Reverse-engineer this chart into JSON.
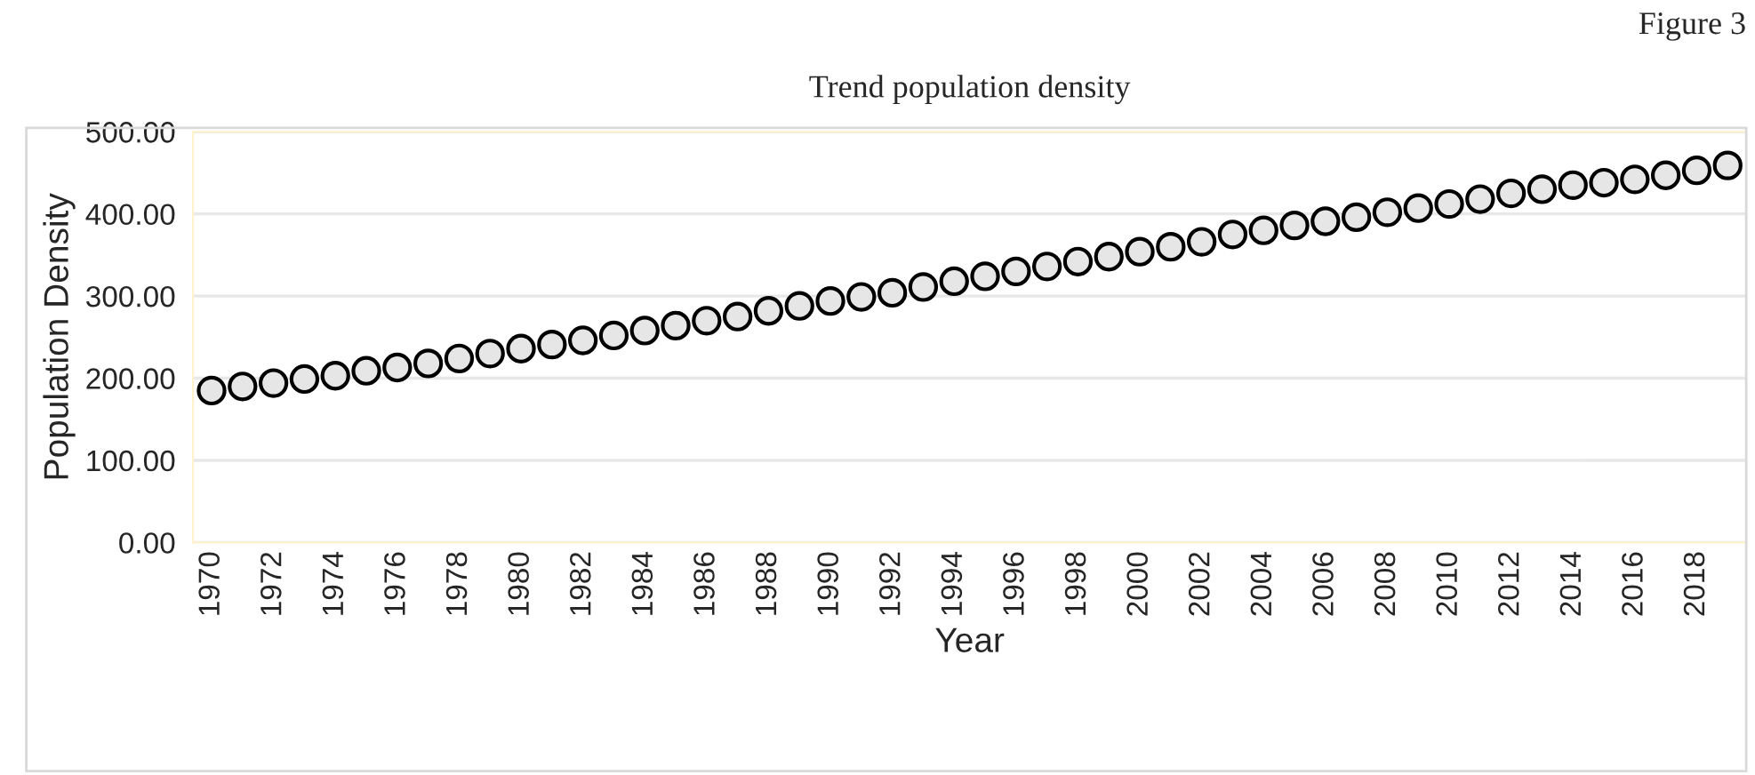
{
  "chart_data": {
    "type": "scatter",
    "title": "Trend population density",
    "xlabel": "Year",
    "ylabel": "Population Density",
    "annotations": [
      "Figure 3"
    ],
    "categories": [
      "1970",
      null,
      "1972",
      null,
      "1974",
      null,
      "1976",
      null,
      "1978",
      null,
      "1980",
      null,
      "1982",
      null,
      "1984",
      null,
      "1986",
      null,
      "1988",
      null,
      "1990",
      null,
      "1992",
      null,
      "1994",
      null,
      "1996",
      null,
      "1998",
      null,
      "2000",
      null,
      "2002",
      null,
      "2004",
      null,
      "2006",
      null,
      "2008",
      null,
      "2010",
      null,
      "2012",
      null,
      "2014",
      null,
      "2016",
      null,
      "2018",
      null
    ],
    "series": [
      {
        "color": "#e6e6e6",
        "values": [
          185,
          190,
          194,
          199,
          203,
          209,
          213,
          218,
          224,
          230,
          236,
          241,
          246,
          252,
          258,
          264,
          270,
          275,
          282,
          288,
          294,
          299,
          304,
          311,
          318,
          324,
          330,
          336,
          342,
          348,
          354,
          360,
          366,
          375,
          380,
          386,
          391,
          396,
          402,
          407,
          412,
          418,
          425,
          430,
          435,
          438,
          442,
          447,
          453,
          459
        ]
      }
    ],
    "ylim": [
      0,
      500
    ],
    "yticks": [
      {
        "value": 0,
        "label": "0.00"
      },
      {
        "value": 100,
        "label": "100.00"
      },
      {
        "value": 200,
        "label": "200.00"
      },
      {
        "value": 300,
        "label": "300.00"
      },
      {
        "value": 400,
        "label": "400.00"
      },
      {
        "value": 500,
        "label": "500.00"
      }
    ],
    "grid": "y",
    "marker": "circle",
    "legend": false
  }
}
